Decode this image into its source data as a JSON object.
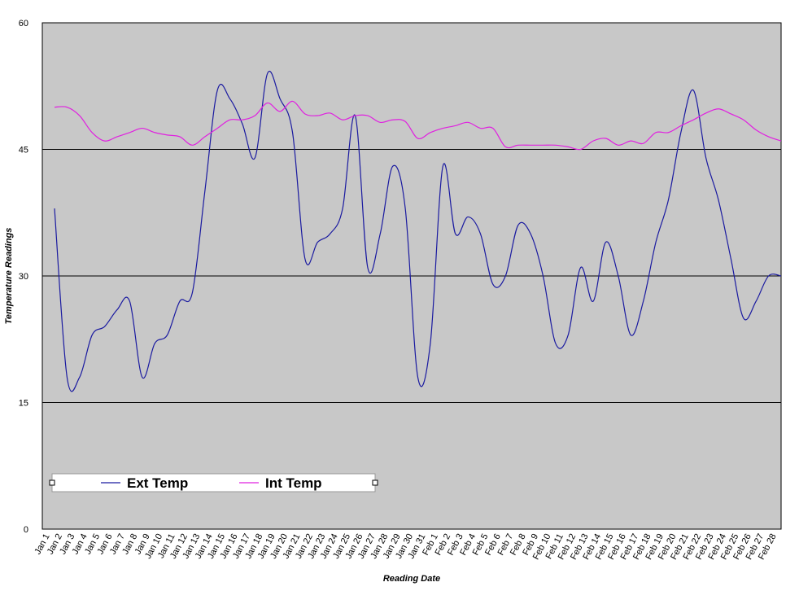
{
  "chart_data": {
    "type": "line",
    "ylabel": "Temperature Readings",
    "xlabel": "Reading Date",
    "categories": [
      "Jan 1",
      "Jan 2",
      "Jan 3",
      "Jan 4",
      "Jan 5",
      "Jan 6",
      "Jan 7",
      "Jan 8",
      "Jan 9",
      "Jan 10",
      "Jan 11",
      "Jan 12",
      "Jan 13",
      "Jan 14",
      "Jan 15",
      "Jan 16",
      "Jan 17",
      "Jan 18",
      "Jan 19",
      "Jan 20",
      "Jan 21",
      "Jan 22",
      "Jan 23",
      "Jan 24",
      "Jan 25",
      "Jan 26",
      "Jan 27",
      "Jan 28",
      "Jan 29",
      "Jan 30",
      "Jan 31",
      "Feb 1",
      "Feb 2",
      "Feb 3",
      "Feb 4",
      "Feb 5",
      "Feb 6",
      "Feb 7",
      "Feb 8",
      "Feb 9",
      "Feb 10",
      "Feb 11",
      "Feb 12",
      "Feb 13",
      "Feb 14",
      "Feb 15",
      "Feb 16",
      "Feb 17",
      "Feb 18",
      "Feb 19",
      "Feb 20",
      "Feb 21",
      "Feb 22",
      "Feb 23",
      "Feb 24",
      "Feb 25",
      "Feb 26",
      "Feb 27",
      "Feb 28"
    ],
    "series": [
      {
        "name": "Ext Temp",
        "color": "#1a1aa0",
        "values": [
          38,
          18,
          18,
          23,
          24,
          26,
          27,
          18,
          22,
          23,
          27,
          28,
          40,
          52,
          51,
          48,
          44,
          54,
          51,
          47,
          32,
          34,
          35,
          38,
          49,
          31,
          35,
          43,
          38,
          18,
          22,
          43,
          35,
          37,
          35,
          29,
          30,
          36,
          35,
          30,
          22,
          23,
          31,
          27,
          34,
          30,
          23,
          27,
          34,
          39,
          47,
          52,
          44,
          39,
          32,
          25,
          27,
          30,
          30
        ]
      },
      {
        "name": "Int Temp",
        "color": "#e020e0",
        "values": [
          50,
          50,
          49,
          47,
          46,
          46.5,
          47,
          47.5,
          47,
          46.7,
          46.5,
          45.5,
          46.5,
          47.5,
          48.5,
          48.5,
          49,
          50.5,
          49.5,
          50.7,
          49.2,
          49,
          49.3,
          48.5,
          49,
          49,
          48.2,
          48.5,
          48.3,
          46.3,
          47,
          47.5,
          47.8,
          48.2,
          47.5,
          47.5,
          45.3,
          45.5,
          45.5,
          45.5,
          45.5,
          45.3,
          45,
          46,
          46.3,
          45.5,
          46,
          45.7,
          47,
          47,
          47.8,
          48.5,
          49.3,
          49.8,
          49.2,
          48.5,
          47.3,
          46.5,
          46
        ]
      }
    ],
    "ylim": [
      0,
      60
    ],
    "yticks": [
      0,
      15,
      30,
      45,
      60
    ],
    "grid": true,
    "smooth": true,
    "legend": "lower left",
    "background": "#c8c8c8"
  }
}
